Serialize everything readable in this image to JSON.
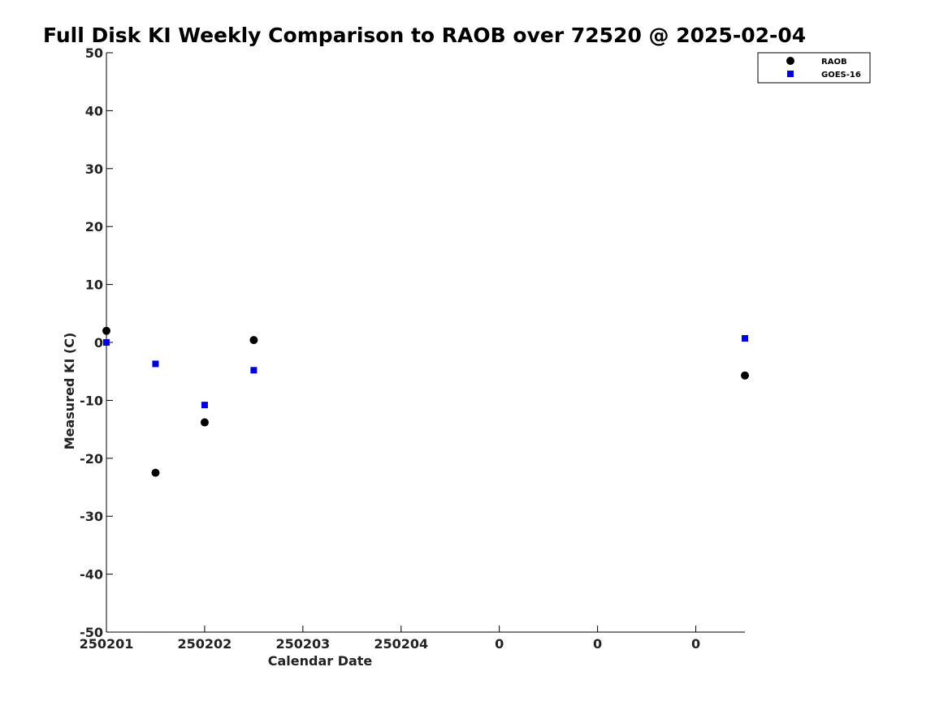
{
  "chart_data": {
    "type": "scatter",
    "title": "Full Disk KI Weekly Comparison to RAOB over 72520 @ 2025-02-04",
    "xlabel": "Calendar Date",
    "ylabel": "Measured KI (C)",
    "xlim": [
      0,
      6.5
    ],
    "ylim": [
      -50,
      50
    ],
    "x_ticks": [
      0,
      1,
      2,
      3,
      4,
      5,
      6
    ],
    "x_tick_labels": [
      "250201",
      "250202",
      "250203",
      "250204",
      "0",
      "0",
      "0"
    ],
    "y_ticks": [
      -50,
      -40,
      -30,
      -20,
      -10,
      0,
      10,
      20,
      30,
      40,
      50
    ],
    "y_tick_labels": [
      "-50",
      "-40",
      "-30",
      "-20",
      "-10",
      "0",
      "10",
      "20",
      "30",
      "40",
      "50"
    ],
    "grid": false,
    "legend_position": "top-right",
    "series": [
      {
        "name": "RAOB",
        "marker": "circle",
        "color": "#000000",
        "x": [
          0,
          0.5,
          1,
          1.5,
          6.5
        ],
        "y": [
          2,
          -22.5,
          -13.8,
          0.4,
          -5.7
        ]
      },
      {
        "name": "GOES-16",
        "marker": "square",
        "color": "#0000dd",
        "x": [
          0,
          0.5,
          1,
          1.5,
          6.5
        ],
        "y": [
          0,
          -3.7,
          -10.8,
          -4.8,
          0.7
        ]
      }
    ]
  }
}
